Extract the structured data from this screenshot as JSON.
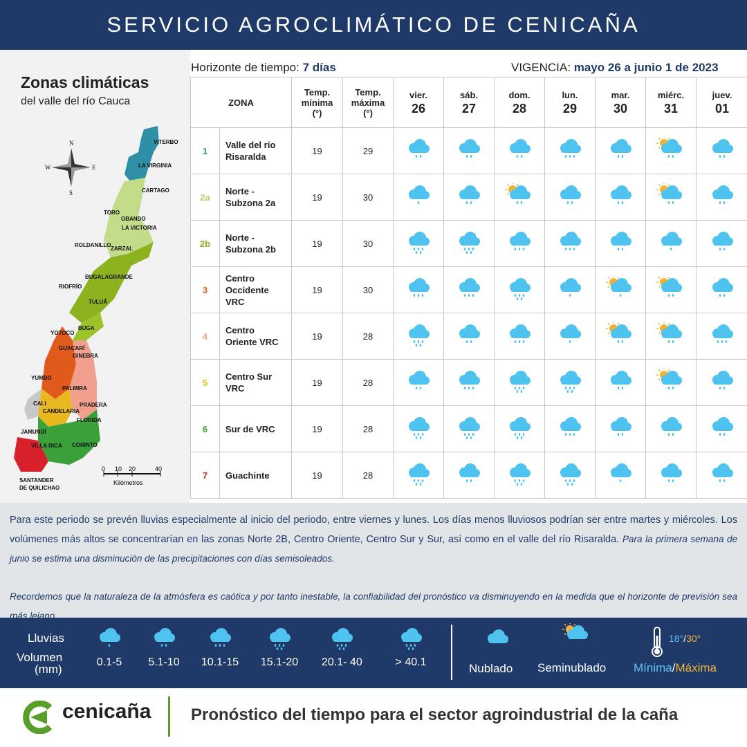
{
  "header": {
    "title": "SERVICIO AGROCLIMÁTICO DE CENICAÑA"
  },
  "map": {
    "title": "Zonas climáticas",
    "subtitle": "del valle del río Cauca",
    "compass": {
      "n": "N",
      "s": "S",
      "e": "E",
      "w": "W"
    },
    "scale_ticks": [
      "0",
      "10",
      "20",
      "40"
    ],
    "scale_unit": "Kilómetros",
    "towns": [
      "VITERBO",
      "LA VIRGINIA",
      "CARTAGO",
      "TORO",
      "OBANDO",
      "LA VICTORIA",
      "ROLDANILLO",
      "ZARZAL",
      "BUGALAGRANDE",
      "RIOFRÍO",
      "TULUÁ",
      "BUGA",
      "YOTOCO",
      "GUACARÍ",
      "GINEBRA",
      "YUMBO",
      "PALMIRA",
      "CALI",
      "CANDELARIA",
      "PRADERA",
      "FLORIDA",
      "JAMUNDÍ",
      "VILLA RICA",
      "CORINTO",
      "SANTANDER",
      "DE QUILICHAO"
    ]
  },
  "horizon": {
    "label": "Horizonte de tiempo:",
    "value": "7 días"
  },
  "validity": {
    "label": "VIGENCIA:",
    "value": "mayo 26 a junio 1 de 2023"
  },
  "table": {
    "zone_header": "ZONA",
    "tmin_header": [
      "Temp.",
      "mínima",
      "(°)"
    ],
    "tmax_header": [
      "Temp.",
      "máxima",
      "(°)"
    ],
    "days": [
      {
        "name": "vier.",
        "date": "26"
      },
      {
        "name": "sáb.",
        "date": "27"
      },
      {
        "name": "dom.",
        "date": "28"
      },
      {
        "name": "lun.",
        "date": "29"
      },
      {
        "name": "mar.",
        "date": "30"
      },
      {
        "name": "miérc.",
        "date": "31"
      },
      {
        "name": "juev.",
        "date": "01"
      }
    ],
    "rows": [
      {
        "num": "1",
        "color": "#2e8fa6",
        "name": [
          "Valle del río",
          "Risaralda"
        ],
        "tmin": "19",
        "tmax": "29",
        "forecast": [
          2,
          2,
          2,
          3,
          2,
          "S2",
          2
        ]
      },
      {
        "num": "2a",
        "color": "#b5d16a",
        "name": [
          "Norte -",
          "Subzona 2a"
        ],
        "tmin": "19",
        "tmax": "30",
        "forecast": [
          1,
          2,
          "S2",
          2,
          2,
          "S2",
          2
        ]
      },
      {
        "num": "2b",
        "color": "#8cb31e",
        "name": [
          "Norte -",
          "Subzona 2b"
        ],
        "tmin": "19",
        "tmax": "30",
        "forecast": [
          4,
          4,
          3,
          3,
          2,
          1,
          2
        ]
      },
      {
        "num": "3",
        "color": "#e05a1c",
        "name": [
          "Centro",
          "Occidente",
          "VRC"
        ],
        "tmin": "19",
        "tmax": "30",
        "forecast": [
          3,
          3,
          4,
          1,
          "S1",
          "S2",
          2
        ]
      },
      {
        "num": "4",
        "color": "#f0a08c",
        "name": [
          "Centro",
          "Oriente VRC"
        ],
        "tmin": "19",
        "tmax": "28",
        "forecast": [
          4,
          2,
          3,
          1,
          "S2",
          "S2",
          3
        ]
      },
      {
        "num": "5",
        "color": "#e8b81e",
        "name": [
          "Centro Sur",
          "VRC"
        ],
        "tmin": "19",
        "tmax": "28",
        "forecast": [
          2,
          3,
          4,
          4,
          2,
          "S2",
          2
        ]
      },
      {
        "num": "6",
        "color": "#3aa03a",
        "name": [
          "Sur de VRC"
        ],
        "tmin": "19",
        "tmax": "28",
        "forecast": [
          4,
          4,
          4,
          3,
          2,
          2,
          2
        ]
      },
      {
        "num": "7",
        "color": "#d8202a",
        "name": [
          "Guachinte"
        ],
        "tmin": "19",
        "tmax": "28",
        "forecast": [
          4,
          2,
          4,
          4,
          1,
          2,
          2
        ]
      }
    ]
  },
  "note": {
    "p1": "Para este periodo se prevén lluvias especialmente al inicio del periodo, entre viernes y lunes.  Los días menos lluviosos podrían ser entre martes y miércoles.  Los volúmenes más altos se concentrarían en las zonas Norte 2B, Centro Oriente, Centro Sur y Sur, así como en el valle del río Risaralda.",
    "p1_italic": "Para la primera semana de junio se estima una disminución de las precipitaciones con días semisoleados.",
    "p2": "Recordemos que la naturaleza de la atmósfera es caótica y por tanto inestable, la confiabilidad del pronóstico va disminuyendo en la medida que el horizonte de previsión sea más lejano."
  },
  "legend": {
    "rain_label": "Lluvias",
    "volume_label": "Volumen",
    "unit_label": "(mm)",
    "ranges": [
      "0.1-5",
      "5.1-10",
      "10.1-15",
      "15.1-20",
      "20.1- 40",
      "> 40.1"
    ],
    "cloudy": "Nublado",
    "semi": "Seminublado",
    "temp_min": "18°",
    "temp_slash": "/",
    "temp_max": "30°",
    "min_label": "Mínima",
    "max_label": "Máxima",
    "min_color": "#5fc3ee",
    "max_color": "#f2b233"
  },
  "footer": {
    "brand": "cenicaña",
    "tagline": "Pronóstico del tiempo para el sector agroindustrial de la caña"
  }
}
